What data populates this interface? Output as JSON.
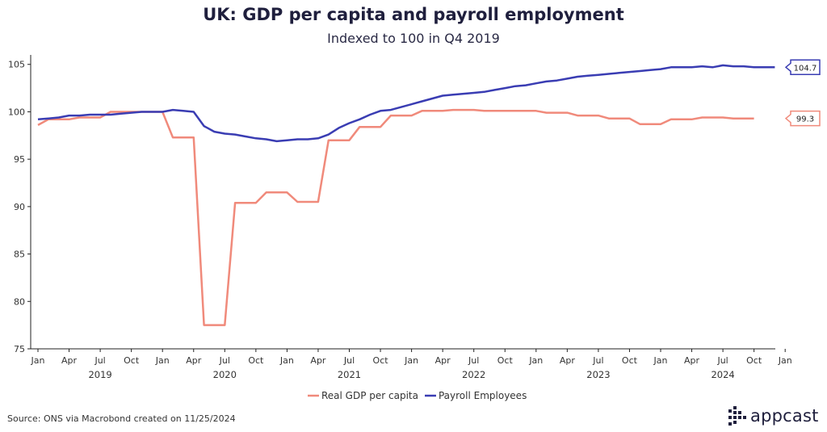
{
  "chart_data": {
    "type": "line",
    "title": "UK: GDP per capita and payroll employment",
    "subtitle": "Indexed to 100 in Q4 2019",
    "ylim": [
      75,
      106
    ],
    "yticks": [
      75,
      80,
      85,
      90,
      95,
      100,
      105
    ],
    "x_tick_labels": [
      "Jan",
      "Apr",
      "Jul",
      "Oct",
      "Jan",
      "Apr",
      "Jul",
      "Oct",
      "Jan",
      "Apr",
      "Jul",
      "Oct",
      "Jan",
      "Apr",
      "Jul",
      "Oct",
      "Jan",
      "Apr",
      "Jul",
      "Oct",
      "Jan",
      "Apr",
      "Jul",
      "Oct",
      "Jan"
    ],
    "years": [
      "2019",
      "2020",
      "2021",
      "2022",
      "2023",
      "2024"
    ],
    "series": [
      {
        "name": "Real GDP per capita",
        "color": "#f08a7b",
        "end_label": "99.3",
        "points": [
          [
            0,
            98.6
          ],
          [
            1,
            99.2
          ],
          [
            3,
            99.2
          ],
          [
            4,
            99.4
          ],
          [
            6,
            99.4
          ],
          [
            7,
            100.0
          ],
          [
            9,
            100.0
          ],
          [
            10,
            100.0
          ],
          [
            12,
            100.0
          ],
          [
            13,
            97.3
          ],
          [
            15,
            97.3
          ],
          [
            16,
            77.5
          ],
          [
            18,
            77.5
          ],
          [
            19,
            90.4
          ],
          [
            21,
            90.4
          ],
          [
            22,
            91.5
          ],
          [
            24,
            91.5
          ],
          [
            25,
            90.5
          ],
          [
            27,
            90.5
          ],
          [
            28,
            97.0
          ],
          [
            30,
            97.0
          ],
          [
            31,
            98.4
          ],
          [
            33,
            98.4
          ],
          [
            34,
            99.6
          ],
          [
            36,
            99.6
          ],
          [
            37,
            100.1
          ],
          [
            39,
            100.1
          ],
          [
            40,
            100.2
          ],
          [
            42,
            100.2
          ],
          [
            43,
            100.1
          ],
          [
            45,
            100.1
          ],
          [
            46,
            100.1
          ],
          [
            48,
            100.1
          ],
          [
            49,
            99.9
          ],
          [
            51,
            99.9
          ],
          [
            52,
            99.6
          ],
          [
            54,
            99.6
          ],
          [
            55,
            99.3
          ],
          [
            57,
            99.3
          ],
          [
            58,
            98.7
          ],
          [
            60,
            98.7
          ],
          [
            61,
            99.2
          ],
          [
            63,
            99.2
          ],
          [
            64,
            99.4
          ],
          [
            66,
            99.4
          ],
          [
            67,
            99.3
          ],
          [
            69,
            99.3
          ]
        ]
      },
      {
        "name": "Payroll Employees",
        "color": "#3a3db3",
        "end_label": "104.7",
        "points": [
          [
            0,
            99.2
          ],
          [
            1,
            99.3
          ],
          [
            2,
            99.4
          ],
          [
            3,
            99.6
          ],
          [
            4,
            99.6
          ],
          [
            5,
            99.7
          ],
          [
            6,
            99.7
          ],
          [
            7,
            99.7
          ],
          [
            8,
            99.8
          ],
          [
            9,
            99.9
          ],
          [
            10,
            100.0
          ],
          [
            11,
            100.0
          ],
          [
            12,
            100.0
          ],
          [
            13,
            100.2
          ],
          [
            14,
            100.1
          ],
          [
            15,
            100.0
          ],
          [
            16,
            98.5
          ],
          [
            17,
            97.9
          ],
          [
            18,
            97.7
          ],
          [
            19,
            97.6
          ],
          [
            20,
            97.4
          ],
          [
            21,
            97.2
          ],
          [
            22,
            97.1
          ],
          [
            23,
            96.9
          ],
          [
            24,
            97.0
          ],
          [
            25,
            97.1
          ],
          [
            26,
            97.1
          ],
          [
            27,
            97.2
          ],
          [
            28,
            97.6
          ],
          [
            29,
            98.3
          ],
          [
            30,
            98.8
          ],
          [
            31,
            99.2
          ],
          [
            32,
            99.7
          ],
          [
            33,
            100.1
          ],
          [
            34,
            100.2
          ],
          [
            35,
            100.5
          ],
          [
            36,
            100.8
          ],
          [
            37,
            101.1
          ],
          [
            38,
            101.4
          ],
          [
            39,
            101.7
          ],
          [
            40,
            101.8
          ],
          [
            41,
            101.9
          ],
          [
            42,
            102.0
          ],
          [
            43,
            102.1
          ],
          [
            44,
            102.3
          ],
          [
            45,
            102.5
          ],
          [
            46,
            102.7
          ],
          [
            47,
            102.8
          ],
          [
            48,
            103.0
          ],
          [
            49,
            103.2
          ],
          [
            50,
            103.3
          ],
          [
            51,
            103.5
          ],
          [
            52,
            103.7
          ],
          [
            53,
            103.8
          ],
          [
            54,
            103.9
          ],
          [
            55,
            104.0
          ],
          [
            56,
            104.1
          ],
          [
            57,
            104.2
          ],
          [
            58,
            104.3
          ],
          [
            59,
            104.4
          ],
          [
            60,
            104.5
          ],
          [
            61,
            104.7
          ],
          [
            62,
            104.7
          ],
          [
            63,
            104.7
          ],
          [
            64,
            104.8
          ],
          [
            65,
            104.7
          ],
          [
            66,
            104.9
          ],
          [
            67,
            104.8
          ],
          [
            68,
            104.8
          ],
          [
            69,
            104.7
          ],
          [
            70,
            104.7
          ],
          [
            71,
            104.7
          ]
        ]
      }
    ]
  },
  "source": "Source: ONS via Macrobond created on 11/25/2024",
  "logo": {
    "text": "appcast",
    "icon": "appcast-dots-icon"
  }
}
